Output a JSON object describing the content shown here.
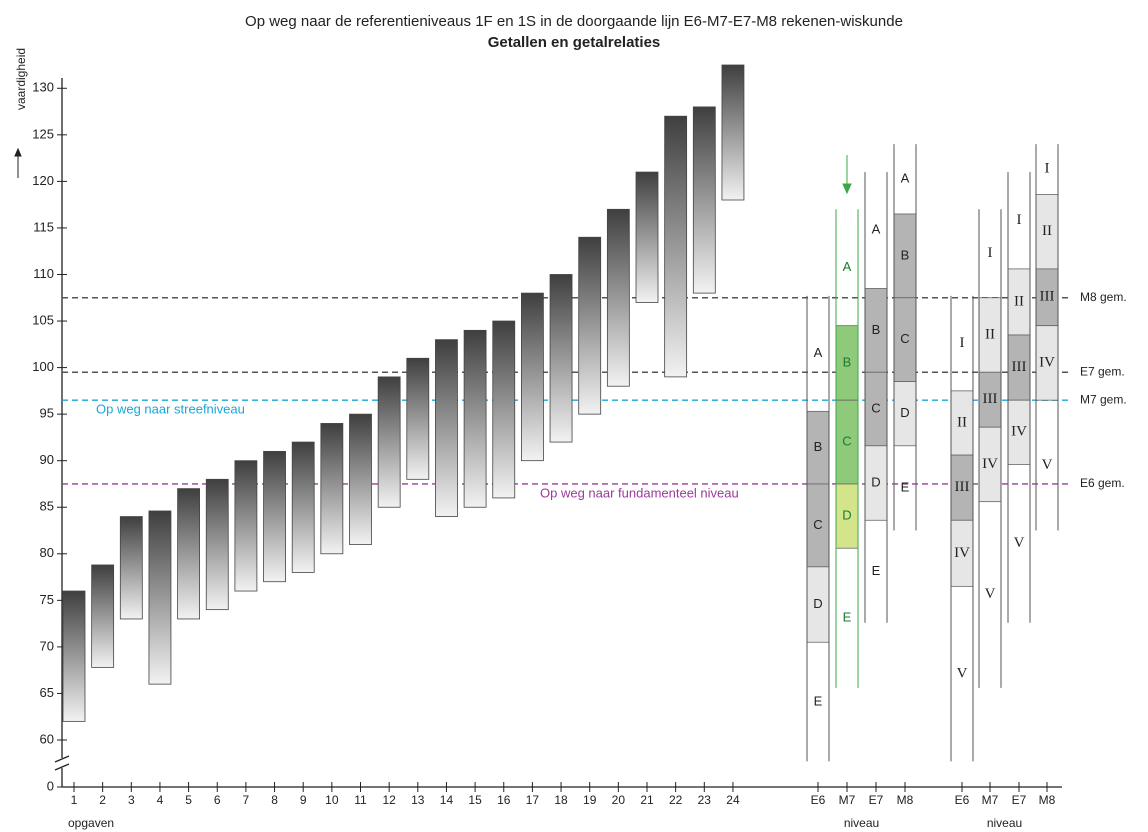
{
  "chart_data": {
    "type": "range_bar",
    "title": "Op weg naar de referentieniveaus 1F en 1S in de doorgaande lijn E6-M7-E7-M8 rekenen-wiskunde",
    "subtitle": "Getallen en getalrelaties",
    "y_label": "vaardigheid",
    "x_label": "opgaven",
    "categories": [
      "1",
      "2",
      "3",
      "4",
      "5",
      "6",
      "7",
      "8",
      "9",
      "10",
      "11",
      "12",
      "13",
      "14",
      "15",
      "16",
      "17",
      "18",
      "19",
      "20",
      "21",
      "22",
      "23",
      "24"
    ],
    "values": [
      [
        62,
        76
      ],
      [
        67.8,
        78.8
      ],
      [
        73,
        84
      ],
      [
        66,
        84.6
      ],
      [
        73,
        87
      ],
      [
        74,
        88
      ],
      [
        76,
        90
      ],
      [
        77,
        91
      ],
      [
        78,
        92
      ],
      [
        80,
        94
      ],
      [
        81,
        95
      ],
      [
        85,
        99
      ],
      [
        88,
        101
      ],
      [
        84,
        103
      ],
      [
        85,
        104
      ],
      [
        86,
        105
      ],
      [
        90,
        108
      ],
      [
        92,
        110
      ],
      [
        95,
        114
      ],
      [
        98,
        117
      ],
      [
        107,
        121
      ],
      [
        99,
        127
      ],
      [
        108,
        128
      ],
      [
        118,
        132.5
      ]
    ],
    "ylim": [
      60,
      132.5
    ],
    "yticks": [
      60,
      65,
      70,
      75,
      80,
      85,
      90,
      95,
      100,
      105,
      110,
      115,
      120,
      125,
      130
    ],
    "y_break_tick": 0,
    "reference_lines": [
      {
        "value": 107.5,
        "label": "M8 gem.",
        "color": "#555555"
      },
      {
        "value": 99.5,
        "label": "E7 gem.",
        "color": "#555555"
      },
      {
        "value": 96.5,
        "label": "M7 gem.",
        "color": "#1aa7d6",
        "note": "Op weg naar streefniveau"
      },
      {
        "value": 87.5,
        "label": "E6 gem.",
        "color": "#9b3a9b",
        "note": "Op weg naar fundamenteel niveau"
      }
    ],
    "level_groups": [
      {
        "label": "niveau",
        "segment_labels": [
          "A",
          "B",
          "C",
          "D",
          "E"
        ],
        "columns": [
          {
            "name": "E6",
            "bounds": [
              107.7,
              95.3,
              87.5,
              78.6,
              70.5,
              57.7
            ],
            "fills": [
              null,
              "#b4b4b4",
              "#b4b4b4",
              "#e6e6e6",
              null
            ],
            "line_color": "#555555",
            "label_color": "#222222"
          },
          {
            "name": "M7",
            "bounds": [
              117,
              104.5,
              96.5,
              87.5,
              80.6,
              65.6
            ],
            "fills": [
              null,
              "#8fca7a",
              "#8fca7a",
              "#d4e48a",
              null
            ],
            "line_color": "#3aa84a",
            "label_color": "#1a7a30"
          },
          {
            "name": "E7",
            "bounds": [
              121,
              108.5,
              99.5,
              91.6,
              83.6,
              72.6
            ],
            "fills": [
              null,
              "#b4b4b4",
              "#b4b4b4",
              "#e6e6e6",
              null
            ],
            "line_color": "#555555",
            "label_color": "#222222"
          },
          {
            "name": "M8",
            "bounds": [
              124,
              116.5,
              107.5,
              98.5,
              91.6,
              82.5
            ],
            "fills": [
              null,
              "#b4b4b4",
              "#b4b4b4",
              "#e6e6e6",
              null
            ],
            "line_color": "#555555",
            "label_color": "#222222"
          }
        ]
      },
      {
        "label": "niveau",
        "segment_labels": [
          "I",
          "II",
          "III",
          "IV",
          "V"
        ],
        "columns": [
          {
            "name": "E6",
            "bounds": [
              107.7,
              97.5,
              90.6,
              83.6,
              76.5,
              57.7
            ],
            "fills": [
              null,
              "#e6e6e6",
              "#b4b4b4",
              "#e6e6e6",
              null
            ],
            "line_color": "#555555",
            "label_color": "#222222"
          },
          {
            "name": "M7",
            "bounds": [
              117,
              107.5,
              99.5,
              93.6,
              85.6,
              65.6
            ],
            "fills": [
              null,
              "#e6e6e6",
              "#b4b4b4",
              "#e6e6e6",
              null
            ],
            "line_color": "#555555",
            "label_color": "#222222"
          },
          {
            "name": "E7",
            "bounds": [
              121,
              110.6,
              103.5,
              96.5,
              89.6,
              72.6
            ],
            "fills": [
              null,
              "#e6e6e6",
              "#b4b4b4",
              "#e6e6e6",
              null
            ],
            "line_color": "#555555",
            "label_color": "#222222"
          },
          {
            "name": "M8",
            "bounds": [
              124,
              118.6,
              110.6,
              104.5,
              96.5,
              82.5
            ],
            "fills": [
              null,
              "#e6e6e6",
              "#b4b4b4",
              "#e6e6e6",
              null
            ],
            "line_color": "#555555",
            "label_color": "#222222"
          }
        ]
      }
    ]
  }
}
